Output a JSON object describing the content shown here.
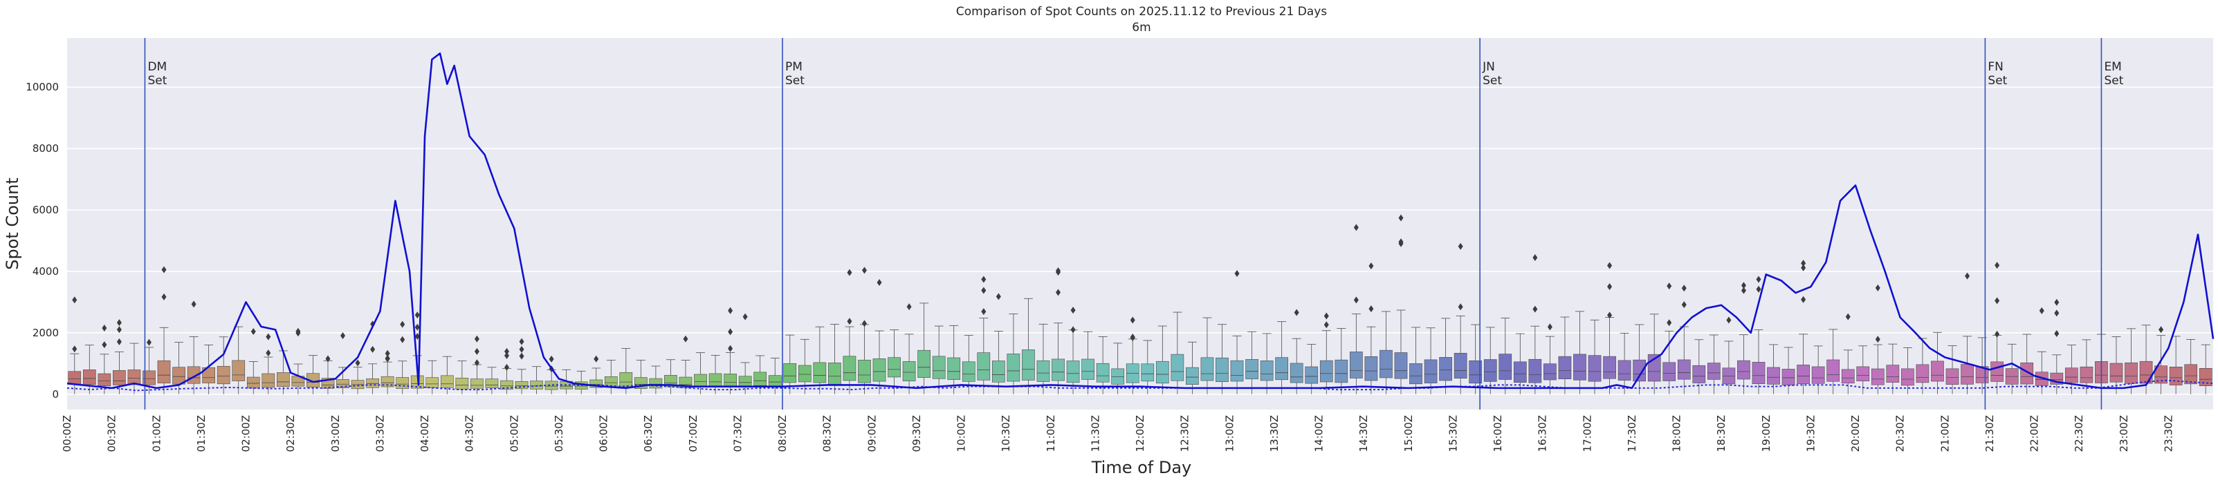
{
  "chart_data": {
    "type": "box+line",
    "title": "Comparison of Spot Counts on 2025.11.12 to Previous 21 Days",
    "subtitle": "6m",
    "xlabel": "Time of Day",
    "ylabel": "Spot Count",
    "ylim": [
      -500,
      11600
    ],
    "yticks": [
      0,
      2000,
      4000,
      6000,
      8000,
      10000
    ],
    "grid": true,
    "bins_per_hour": 6,
    "xtick_labels": [
      "00:00Z",
      "00:30Z",
      "01:00Z",
      "01:30Z",
      "02:00Z",
      "02:30Z",
      "03:00Z",
      "03:30Z",
      "04:00Z",
      "04:30Z",
      "05:00Z",
      "05:30Z",
      "06:00Z",
      "06:30Z",
      "07:00Z",
      "07:30Z",
      "08:00Z",
      "08:30Z",
      "09:00Z",
      "09:30Z",
      "10:00Z",
      "10:30Z",
      "11:00Z",
      "11:30Z",
      "12:00Z",
      "12:30Z",
      "13:00Z",
      "13:30Z",
      "14:00Z",
      "14:30Z",
      "15:00Z",
      "15:30Z",
      "16:00Z",
      "16:30Z",
      "17:00Z",
      "17:30Z",
      "18:00Z",
      "18:30Z",
      "19:00Z",
      "19:30Z",
      "20:00Z",
      "20:30Z",
      "21:00Z",
      "21:30Z",
      "22:00Z",
      "22:30Z",
      "23:00Z",
      "23:30Z"
    ],
    "events": [
      {
        "hour": 0.87,
        "line1": "DM",
        "line2": "Set"
      },
      {
        "hour": 8.0,
        "line1": "PM",
        "line2": "Set"
      },
      {
        "hour": 15.8,
        "line1": "JN",
        "line2": "Set"
      },
      {
        "hour": 21.45,
        "line1": "FN",
        "line2": "Set"
      },
      {
        "hour": 22.75,
        "line1": "EM",
        "line2": "Set"
      }
    ],
    "series": [
      {
        "name": "2025.11.12",
        "type": "line",
        "color": "#1010d0",
        "x_hours": [
          0,
          0.5,
          0.75,
          1,
          1.25,
          1.5,
          1.75,
          2,
          2.17,
          2.33,
          2.5,
          2.75,
          3,
          3.25,
          3.5,
          3.67,
          3.83,
          3.93,
          4.0,
          4.08,
          4.17,
          4.25,
          4.33,
          4.5,
          4.67,
          4.83,
          5,
          5.17,
          5.33,
          5.5,
          5.67,
          5.83,
          6,
          6.25,
          6.5,
          6.75,
          7,
          7.5,
          8,
          8.5,
          9,
          9.5,
          10,
          10.5,
          11,
          11.5,
          12,
          12.5,
          13,
          13.5,
          14,
          14.5,
          15,
          15.5,
          16,
          16.5,
          17,
          17.17,
          17.33,
          17.5,
          17.67,
          17.83,
          18,
          18.17,
          18.33,
          18.5,
          18.67,
          18.83,
          19,
          19.17,
          19.33,
          19.5,
          19.67,
          19.83,
          20,
          20.17,
          20.33,
          20.5,
          20.67,
          20.83,
          21,
          21.25,
          21.5,
          21.75,
          22,
          22.25,
          22.5,
          22.75,
          23,
          23.25,
          23.5,
          23.67,
          23.83,
          24
        ],
        "values": [
          350,
          200,
          350,
          200,
          300,
          700,
          1300,
          3000,
          2200,
          2100,
          700,
          400,
          500,
          1200,
          2700,
          6300,
          4000,
          300,
          8400,
          10900,
          11100,
          10100,
          10700,
          8400,
          7800,
          6500,
          5400,
          2800,
          1200,
          500,
          350,
          300,
          250,
          200,
          300,
          300,
          250,
          250,
          250,
          300,
          300,
          200,
          300,
          250,
          300,
          250,
          250,
          200,
          200,
          200,
          200,
          250,
          200,
          250,
          200,
          200,
          200,
          200,
          300,
          200,
          1000,
          1300,
          2000,
          2500,
          2800,
          2900,
          2500,
          2000,
          3900,
          3700,
          3300,
          3500,
          4300,
          6300,
          6800,
          5300,
          4000,
          2500,
          2000,
          1500,
          1200,
          1000,
          800,
          1000,
          600,
          400,
          300,
          200,
          200,
          300,
          1500,
          3000,
          5200,
          1800
        ],
        "dashed_baseline": [
          200,
          150,
          200,
          120,
          150,
          180,
          200,
          220,
          200,
          180,
          200,
          200,
          250,
          300,
          300,
          250,
          200,
          150,
          150,
          200,
          250,
          300,
          300,
          300,
          250,
          300,
          250,
          200,
          150,
          150,
          200,
          200,
          180,
          180,
          150,
          200,
          200,
          250,
          200,
          250,
          250,
          250,
          250,
          200,
          200,
          200,
          200,
          200,
          200,
          200,
          200,
          200,
          200,
          200,
          200,
          150,
          150,
          150,
          200,
          200,
          250,
          250,
          300,
          300,
          250,
          200,
          200,
          200,
          200,
          200,
          250,
          300,
          300,
          250,
          250,
          300,
          300,
          300,
          200,
          200,
          200,
          200,
          200,
          200,
          250,
          250,
          250,
          200,
          200,
          300,
          400,
          450,
          400,
          350
        ]
      },
      {
        "name": "Previous 21 Days",
        "type": "box",
        "medians_by_hour": [
          500,
          550,
          350,
          350,
          300,
          300,
          350,
          400,
          650,
          800,
          750,
          650,
          650,
          650,
          750,
          700,
          750,
          700,
          650,
          600,
          550,
          550,
          550,
          550,
          550,
          550,
          550,
          550,
          550,
          550,
          550,
          500,
          350,
          350,
          350,
          300,
          350,
          350,
          350,
          350,
          350,
          350,
          300,
          350,
          400,
          450,
          550,
          600
        ]
      }
    ]
  }
}
